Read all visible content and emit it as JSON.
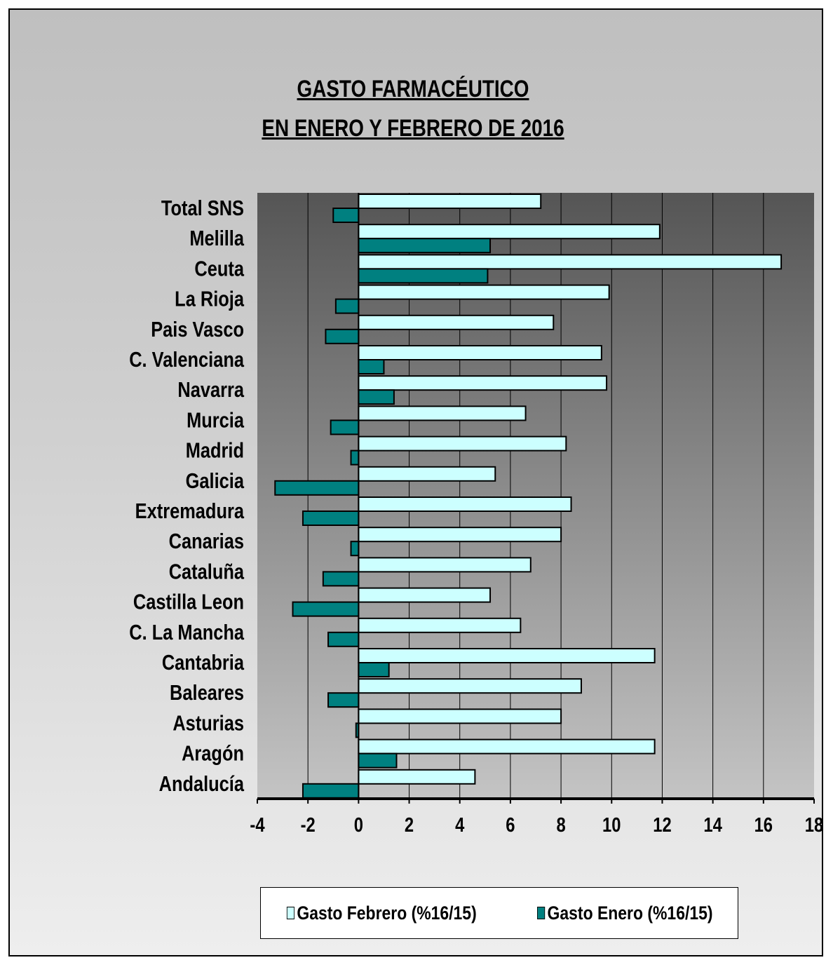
{
  "title_line1": "GASTO FARMACÉUTICO",
  "title_line2": "EN ENERO Y FEBRERO DE 2016",
  "colors": {
    "febrero": "#ccffff",
    "enero": "#008080"
  },
  "chart_data": {
    "type": "bar",
    "orientation": "horizontal",
    "title": "GASTO FARMACÉUTICO EN ENERO Y FEBRERO DE 2016",
    "categories": [
      "Total SNS",
      "Melilla",
      "Ceuta",
      "La Rioja",
      "Pais Vasco",
      "C. Valenciana",
      "Navarra",
      "Murcia",
      "Madrid",
      "Galicia",
      "Extremadura",
      "Canarias",
      "Cataluña",
      "Castilla Leon",
      "C. La Mancha",
      "Cantabria",
      "Baleares",
      "Asturias",
      "Aragón",
      "Andalucía"
    ],
    "series": [
      {
        "name": "Gasto Febrero  (%16/15)",
        "values": [
          7.2,
          11.9,
          16.7,
          9.9,
          7.7,
          9.6,
          9.8,
          6.6,
          8.2,
          5.4,
          8.4,
          8.0,
          6.8,
          5.2,
          6.4,
          11.7,
          8.8,
          8.0,
          11.7,
          4.6
        ]
      },
      {
        "name": "Gasto Enero (%16/15)",
        "values": [
          -1.0,
          5.2,
          5.1,
          -0.9,
          -1.3,
          1.0,
          1.4,
          -1.1,
          -0.3,
          -3.3,
          -2.2,
          -0.3,
          -1.4,
          -2.6,
          -1.2,
          1.2,
          -1.2,
          -0.1,
          1.5,
          -2.2
        ]
      }
    ],
    "xlim": [
      -4,
      18
    ],
    "xticks": [
      -4,
      -2,
      0,
      2,
      4,
      6,
      8,
      10,
      12,
      14,
      16,
      18
    ],
    "grid": true,
    "legend_position": "bottom"
  }
}
